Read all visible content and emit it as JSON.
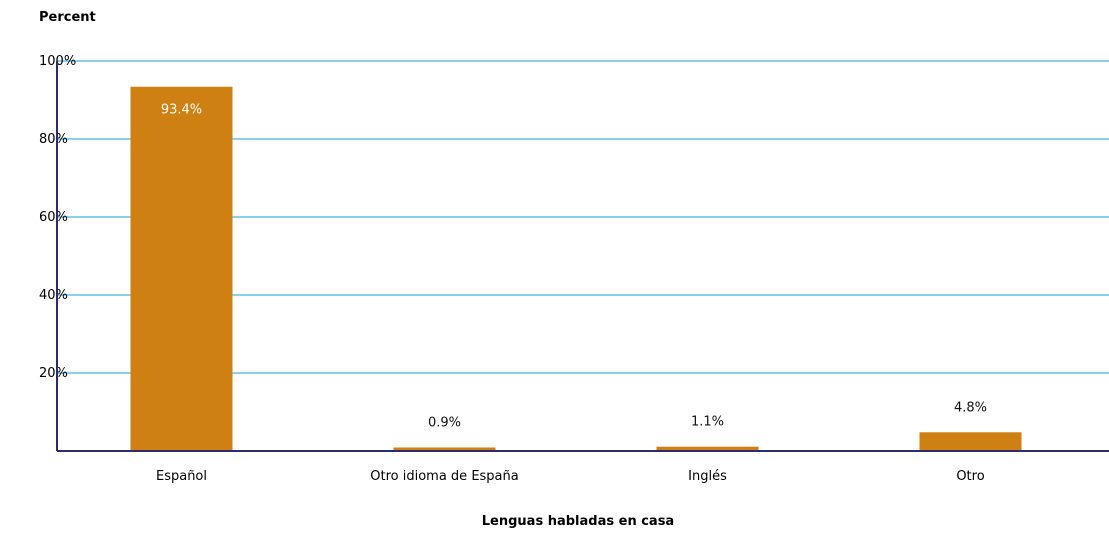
{
  "chart_data": {
    "type": "bar",
    "categories": [
      "Español",
      "Otro idioma de España",
      "Inglés",
      "Otro"
    ],
    "values": [
      93.4,
      0.9,
      1.1,
      4.8
    ],
    "data_labels": [
      "93.4%",
      "0.9%",
      "1.1%",
      "4.8%"
    ],
    "ylabel": "Percent",
    "xlabel": "Lenguas habladas en casa",
    "ylim": [
      0,
      100
    ],
    "yticks": [
      20,
      40,
      60,
      80,
      100
    ],
    "ytick_labels": [
      "20%",
      "40%",
      "60%",
      "80%",
      "100%"
    ],
    "grid": true,
    "colors": {
      "bar": "#CE8012",
      "grid": "#1AA3D9",
      "axis": "#2E2A6E",
      "inside_label": "#ffffff",
      "outside_label": "#111111"
    }
  }
}
